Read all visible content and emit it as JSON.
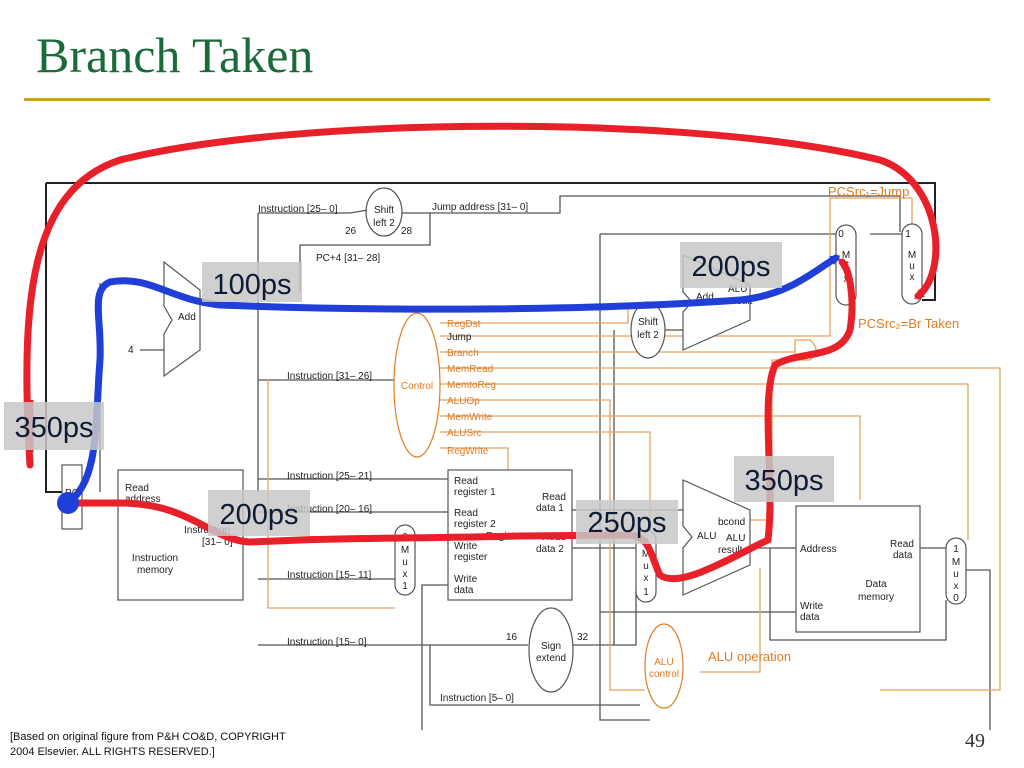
{
  "slide": {
    "title": "Branch Taken",
    "page_number": "49",
    "credit_line1": "[Based on original figure from P&H CO&D, COPYRIGHT",
    "credit_line2": "2004 Elsevier. ALL RIGHTS RESERVED.]"
  },
  "diagram": {
    "blocks": {
      "shift_left_top": [
        "Shift",
        "left 2"
      ],
      "adder_pc": "Add",
      "constant_four": "4",
      "pc_register": "PC",
      "instruction_memory": [
        "Read",
        "address",
        "Instruction",
        "[31– 0]",
        "Instruction",
        "memory"
      ],
      "control": "Control",
      "registers": [
        "Read",
        "register 1",
        "Read",
        "register 2",
        "Write",
        "register",
        "Write",
        "data",
        "Read",
        "data 1",
        "Read",
        "data 2",
        "Registers"
      ],
      "sign_extend": [
        "Sign",
        "extend"
      ],
      "alu_control": [
        "ALU",
        "control"
      ],
      "shift_left_mid": [
        "Shift",
        "left 2"
      ],
      "adder_branch": [
        "Add",
        "ALU",
        "result"
      ],
      "alu_main": [
        "ALU",
        "ALU",
        "result"
      ],
      "data_memory": [
        "Address",
        "Read",
        "data",
        "Write",
        "data",
        "Data",
        "memory"
      ],
      "mux_jump": [
        "1",
        "M",
        "u",
        "x"
      ],
      "mux_branch": [
        "0",
        "M",
        "u",
        "x"
      ],
      "mux_regdst": [
        "0",
        "M",
        "u",
        "x",
        "1"
      ],
      "mux_alusrc": [
        "0",
        "M",
        "u",
        "x",
        "1"
      ],
      "mux_memtoreg": [
        "1",
        "M",
        "u",
        "x",
        "0"
      ]
    },
    "wire_labels": {
      "instr_25_0": "Instruction [25– 0]",
      "jump_address": "Jump address [31– 0]",
      "bits_26": "26",
      "bits_28": "28",
      "pc4_31_28": "PC+4 [31– 28]",
      "instr_31_26": "Instruction [31– 26]",
      "instr_25_21": "Instruction [25– 21]",
      "instr_20_16": "Instruction [20– 16]",
      "instr_15_11": "Instruction [15– 11]",
      "instr_15_0": "Instruction [15– 0]",
      "instr_5_0": "Instruction [5– 0]",
      "bits_16": "16",
      "bits_32": "32",
      "bcond": "bcond"
    },
    "control_signals": [
      "RegDst",
      "Jump",
      "Branch",
      "MemRead",
      "MemtoReg",
      "ALUOp",
      "MemWrite",
      "ALUSrc",
      "RegWrite"
    ],
    "annotations": {
      "pcsrc1": "PCSrc₁=Jump",
      "pcsrc2": "PCSrc₂=Br Taken",
      "alu_operation": "ALU operation"
    },
    "timing_labels": [
      "100ps",
      "200ps",
      "350ps",
      "200ps",
      "250ps",
      "350ps"
    ],
    "path_colors": {
      "critical_path": "#e8202a",
      "pc_increment_path": "#1f3fd8",
      "control_accent": "#e07c20",
      "title": "#1a6a3a",
      "rule": "#c9a227"
    }
  }
}
